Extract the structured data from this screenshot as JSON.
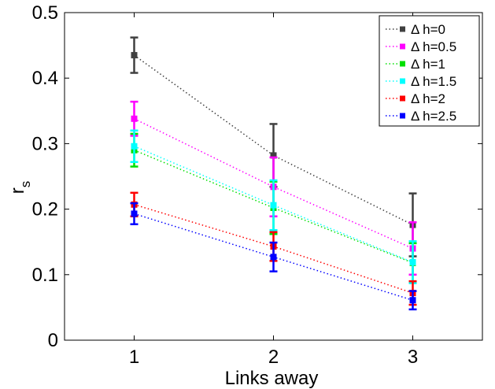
{
  "chart_data": {
    "type": "line",
    "xlabel": "Links away",
    "ylabel": "r",
    "ylabel_sub": "s",
    "xlim": [
      0.5,
      3.5
    ],
    "ylim": [
      0,
      0.5
    ],
    "xticks": [
      1,
      2,
      3
    ],
    "yticks": [
      0,
      0.1,
      0.2,
      0.3,
      0.4,
      0.5
    ],
    "ytick_labels": [
      "0",
      "0.1",
      "0.2",
      "0.3",
      "0.4",
      "0.5"
    ],
    "grid": false,
    "legend_position": "top-right",
    "series": [
      {
        "name": "Δ h=0",
        "color": "#404040",
        "x": [
          1,
          2,
          3
        ],
        "y": [
          0.435,
          0.282,
          0.176
        ],
        "err": [
          0.027,
          0.048,
          0.048
        ]
      },
      {
        "name": "Δ h=0.5",
        "color": "#ff00ff",
        "x": [
          1,
          2,
          3
        ],
        "y": [
          0.338,
          0.234,
          0.14
        ],
        "err": [
          0.026,
          0.045,
          0.04
        ]
      },
      {
        "name": "Δ h=1",
        "color": "#00e000",
        "x": [
          1,
          2,
          3
        ],
        "y": [
          0.29,
          0.202,
          0.118
        ],
        "err": [
          0.025,
          0.04,
          0.03
        ]
      },
      {
        "name": "Δ h=1.5",
        "color": "#00ffff",
        "x": [
          1,
          2,
          3
        ],
        "y": [
          0.296,
          0.206,
          0.119
        ],
        "err": [
          0.024,
          0.038,
          0.032
        ]
      },
      {
        "name": "Δ h=2",
        "color": "#ff0000",
        "x": [
          1,
          2,
          3
        ],
        "y": [
          0.207,
          0.143,
          0.072
        ],
        "err": [
          0.018,
          0.022,
          0.018
        ]
      },
      {
        "name": "Δ h=2.5",
        "color": "#0000ff",
        "x": [
          1,
          2,
          3
        ],
        "y": [
          0.193,
          0.127,
          0.061
        ],
        "err": [
          0.016,
          0.022,
          0.014
        ]
      }
    ]
  }
}
